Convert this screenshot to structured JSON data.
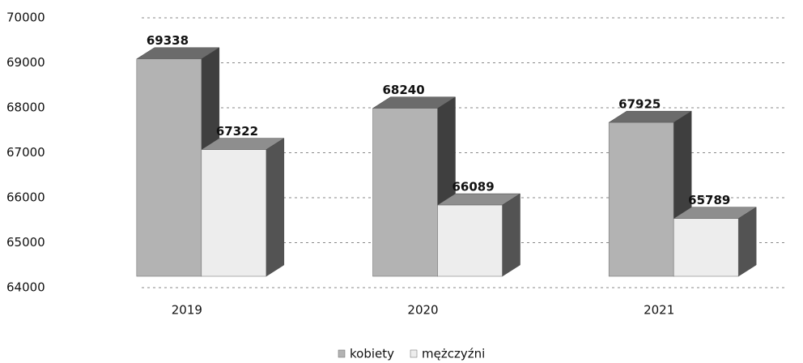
{
  "chart_data": {
    "type": "bar3d",
    "categories": [
      "2019",
      "2020",
      "2021"
    ],
    "series": [
      {
        "name": "kobiety",
        "color": "#b3b3b3",
        "values": [
          69338,
          68240,
          67925
        ]
      },
      {
        "name": "mężczyźni",
        "color": "#ededed",
        "values": [
          67322,
          66089,
          65789
        ]
      }
    ],
    "ylim": [
      64000,
      70000
    ],
    "yticks": [
      64000,
      65000,
      66000,
      67000,
      68000,
      69000,
      70000
    ],
    "grid": true,
    "legend": "bottom"
  }
}
